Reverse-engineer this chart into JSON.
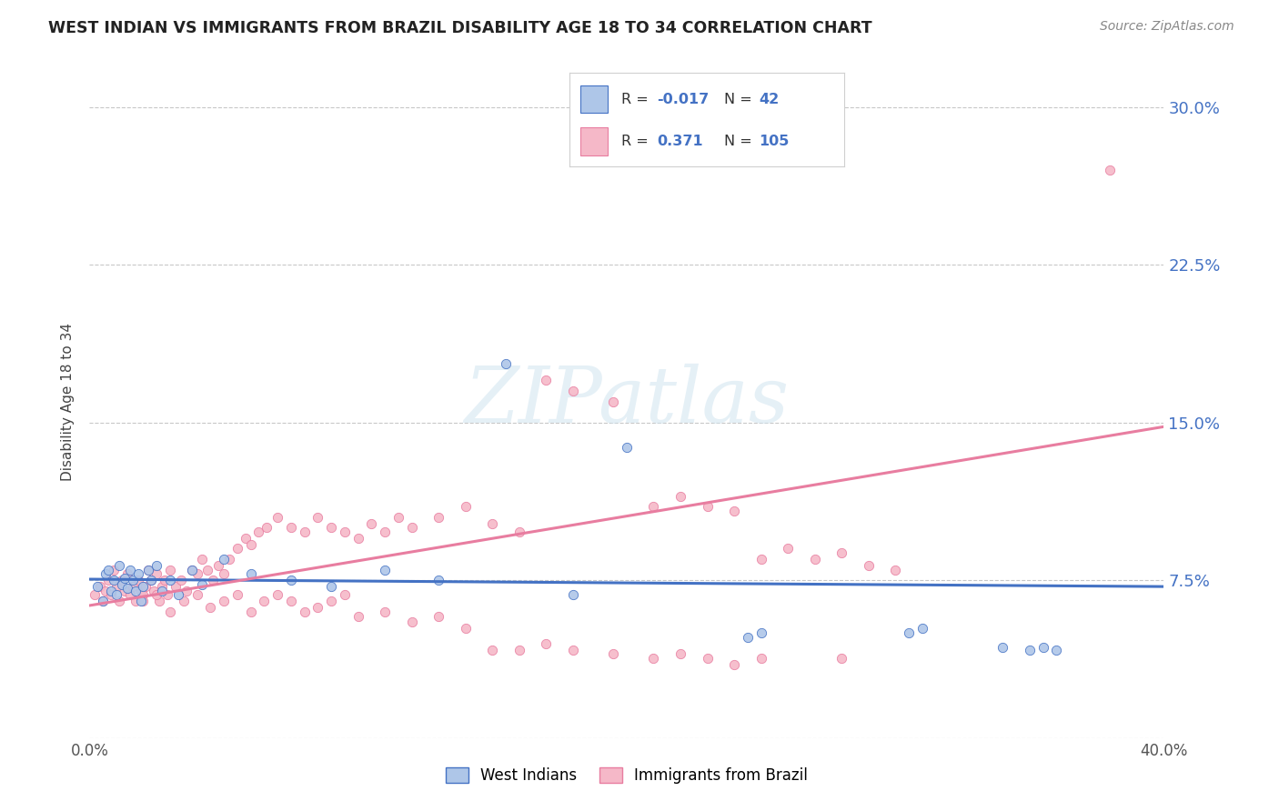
{
  "title": "WEST INDIAN VS IMMIGRANTS FROM BRAZIL DISABILITY AGE 18 TO 34 CORRELATION CHART",
  "source": "Source: ZipAtlas.com",
  "ylabel": "Disability Age 18 to 34",
  "xlim": [
    0.0,
    0.4
  ],
  "ylim": [
    0.0,
    0.32
  ],
  "xticks": [
    0.0,
    0.1,
    0.2,
    0.3,
    0.4
  ],
  "xticklabels": [
    "0.0%",
    "",
    "",
    "",
    "40.0%"
  ],
  "yticks": [
    0.0,
    0.075,
    0.15,
    0.225,
    0.3
  ],
  "grid_color": "#c8c8c8",
  "background_color": "#ffffff",
  "color_blue": "#aec6e8",
  "color_pink": "#f5b8c8",
  "line_blue": "#4472c4",
  "line_pink": "#e87da0",
  "west_indian_x": [
    0.003,
    0.005,
    0.006,
    0.007,
    0.008,
    0.009,
    0.01,
    0.011,
    0.012,
    0.013,
    0.014,
    0.015,
    0.016,
    0.017,
    0.018,
    0.019,
    0.02,
    0.022,
    0.023,
    0.025,
    0.027,
    0.03,
    0.033,
    0.038,
    0.042,
    0.05,
    0.06,
    0.075,
    0.09,
    0.11,
    0.13,
    0.155,
    0.18,
    0.2,
    0.245,
    0.25,
    0.305,
    0.31,
    0.34,
    0.35,
    0.355,
    0.36
  ],
  "west_indian_y": [
    0.072,
    0.065,
    0.078,
    0.08,
    0.07,
    0.075,
    0.068,
    0.082,
    0.073,
    0.076,
    0.071,
    0.08,
    0.075,
    0.07,
    0.078,
    0.065,
    0.072,
    0.08,
    0.075,
    0.082,
    0.07,
    0.075,
    0.068,
    0.08,
    0.073,
    0.085,
    0.078,
    0.075,
    0.072,
    0.08,
    0.075,
    0.178,
    0.068,
    0.138,
    0.048,
    0.05,
    0.05,
    0.052,
    0.043,
    0.042,
    0.043,
    0.042
  ],
  "brazil_x": [
    0.002,
    0.004,
    0.005,
    0.006,
    0.007,
    0.008,
    0.009,
    0.01,
    0.011,
    0.012,
    0.013,
    0.014,
    0.015,
    0.016,
    0.017,
    0.018,
    0.019,
    0.02,
    0.021,
    0.022,
    0.023,
    0.024,
    0.025,
    0.026,
    0.027,
    0.028,
    0.029,
    0.03,
    0.032,
    0.034,
    0.036,
    0.038,
    0.04,
    0.042,
    0.044,
    0.046,
    0.048,
    0.05,
    0.052,
    0.055,
    0.058,
    0.06,
    0.063,
    0.066,
    0.07,
    0.075,
    0.08,
    0.085,
    0.09,
    0.095,
    0.1,
    0.105,
    0.11,
    0.115,
    0.12,
    0.13,
    0.14,
    0.15,
    0.16,
    0.17,
    0.18,
    0.195,
    0.21,
    0.22,
    0.23,
    0.24,
    0.25,
    0.26,
    0.27,
    0.28,
    0.29,
    0.3,
    0.02,
    0.025,
    0.03,
    0.035,
    0.04,
    0.045,
    0.05,
    0.055,
    0.06,
    0.065,
    0.07,
    0.075,
    0.08,
    0.085,
    0.09,
    0.095,
    0.1,
    0.11,
    0.12,
    0.13,
    0.14,
    0.15,
    0.16,
    0.17,
    0.18,
    0.195,
    0.21,
    0.22,
    0.23,
    0.24,
    0.25,
    0.28,
    0.38
  ],
  "brazil_y": [
    0.068,
    0.072,
    0.065,
    0.07,
    0.075,
    0.068,
    0.08,
    0.072,
    0.065,
    0.075,
    0.07,
    0.078,
    0.068,
    0.072,
    0.065,
    0.075,
    0.07,
    0.068,
    0.072,
    0.08,
    0.075,
    0.07,
    0.078,
    0.065,
    0.072,
    0.075,
    0.068,
    0.08,
    0.072,
    0.075,
    0.07,
    0.08,
    0.078,
    0.085,
    0.08,
    0.075,
    0.082,
    0.078,
    0.085,
    0.09,
    0.095,
    0.092,
    0.098,
    0.1,
    0.105,
    0.1,
    0.098,
    0.105,
    0.1,
    0.098,
    0.095,
    0.102,
    0.098,
    0.105,
    0.1,
    0.105,
    0.11,
    0.102,
    0.098,
    0.17,
    0.165,
    0.16,
    0.11,
    0.115,
    0.11,
    0.108,
    0.085,
    0.09,
    0.085,
    0.088,
    0.082,
    0.08,
    0.065,
    0.068,
    0.06,
    0.065,
    0.068,
    0.062,
    0.065,
    0.068,
    0.06,
    0.065,
    0.068,
    0.065,
    0.06,
    0.062,
    0.065,
    0.068,
    0.058,
    0.06,
    0.055,
    0.058,
    0.052,
    0.042,
    0.042,
    0.045,
    0.042,
    0.04,
    0.038,
    0.04,
    0.038,
    0.035,
    0.038,
    0.038,
    0.27
  ],
  "wi_trend_x": [
    0.0,
    0.4
  ],
  "wi_trend_y": [
    0.0755,
    0.072
  ],
  "br_trend_x": [
    0.0,
    0.4
  ],
  "br_trend_y": [
    0.063,
    0.148
  ]
}
